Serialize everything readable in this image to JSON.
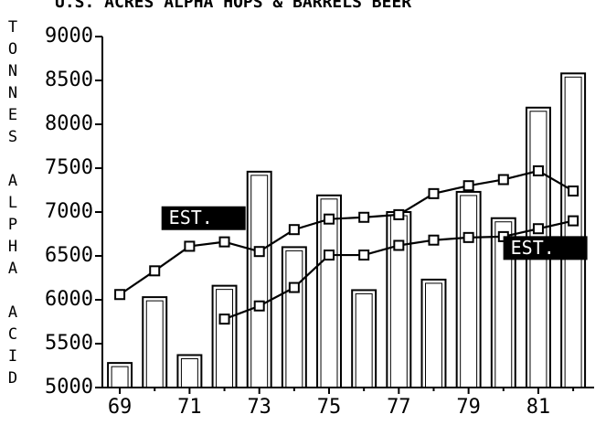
{
  "chart_data": {
    "type": "bar",
    "title": "U.S. ACRES ALPHA HOPS & BARRELS BEER",
    "ylabel": "TONNES ALPHA ACID",
    "xlabel": "",
    "x_ticks": [
      "69",
      "71",
      "73",
      "75",
      "77",
      "79",
      "81"
    ],
    "y_ticks": [
      "9000",
      "8500",
      "8000",
      "7500",
      "7000",
      "6500",
      "6000",
      "5500",
      "5000"
    ],
    "ylim": [
      5000,
      9000
    ],
    "xlim": [
      68.5,
      82.6
    ],
    "grid": false,
    "bars": {
      "x": [
        69,
        70,
        71,
        72,
        73,
        74,
        75,
        76,
        77,
        78,
        79,
        80,
        81,
        82
      ],
      "values": [
        5280,
        6030,
        5370,
        6160,
        7460,
        6600,
        7190,
        6110,
        7000,
        6230,
        7230,
        6930,
        8190,
        8580
      ]
    },
    "series": [
      {
        "x": [
          69,
          70,
          71,
          72,
          73,
          74,
          75,
          76,
          77,
          78,
          79,
          80,
          81,
          82
        ],
        "values": [
          6060,
          6330,
          6610,
          6660,
          6550,
          6800,
          6920,
          6940,
          6970,
          7210,
          7300,
          7370,
          7470,
          7240
        ]
      },
      {
        "x": [
          72,
          73,
          74,
          75,
          76,
          77,
          78,
          79,
          80,
          81,
          82
        ],
        "values": [
          5780,
          5930,
          6140,
          6510,
          6510,
          6620,
          6680,
          6710,
          6720,
          6810,
          6900
        ]
      }
    ],
    "annotations": [
      {
        "text": "EST.",
        "x": 70.3,
        "y": 6930
      },
      {
        "text": "EST.",
        "x": 80.1,
        "y": 6590
      }
    ]
  }
}
